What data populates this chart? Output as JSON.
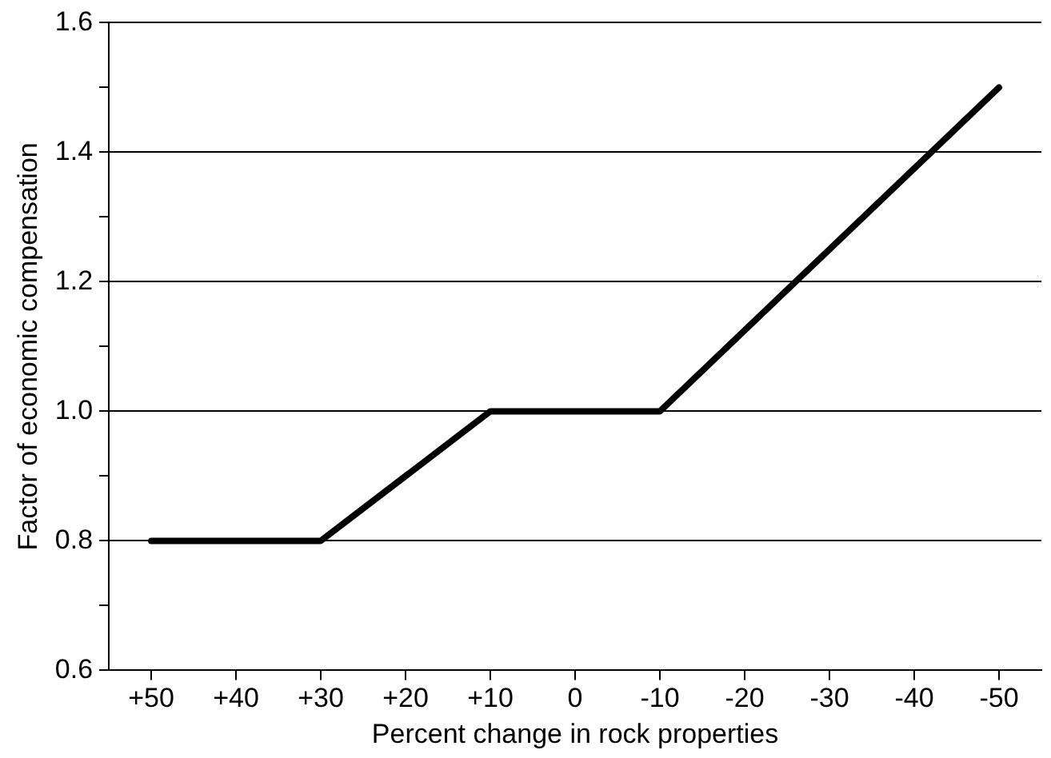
{
  "chart_data": {
    "type": "line",
    "xlabel": "Percent change in rock properties",
    "ylabel": "Factor of economic compensation",
    "x": [
      50,
      30,
      10,
      -10,
      -50
    ],
    "series": [
      {
        "color": "#000000",
        "values": [
          0.8,
          0.8,
          1.0,
          1.0,
          1.5
        ]
      }
    ],
    "xlim": [
      55,
      -55
    ],
    "xticks": [
      {
        "value": 50,
        "label": "+50"
      },
      {
        "value": 40,
        "label": "+40"
      },
      {
        "value": 30,
        "label": "+30"
      },
      {
        "value": 20,
        "label": "+20"
      },
      {
        "value": 10,
        "label": "+10"
      },
      0,
      -10,
      -20,
      -30,
      -40,
      -50
    ],
    "ylim": [
      0.6,
      1.6
    ],
    "yticks": [
      {
        "value": 0.6,
        "label": "0.6"
      },
      {
        "value": 0.7,
        "label": null
      },
      {
        "value": 0.8,
        "label": "0.8"
      },
      {
        "value": 0.9,
        "label": null
      },
      {
        "value": 1.0,
        "label": "1.0"
      },
      {
        "value": 1.1,
        "label": null
      },
      {
        "value": 1.2,
        "label": "1.2"
      },
      {
        "value": 1.3,
        "label": null
      },
      {
        "value": 1.4,
        "label": "1.4"
      },
      {
        "value": 1.5,
        "label": null
      },
      {
        "value": 1.6,
        "label": "1.6"
      }
    ],
    "grid": "y",
    "legend": false,
    "marker": "none",
    "line_style": "solid"
  }
}
